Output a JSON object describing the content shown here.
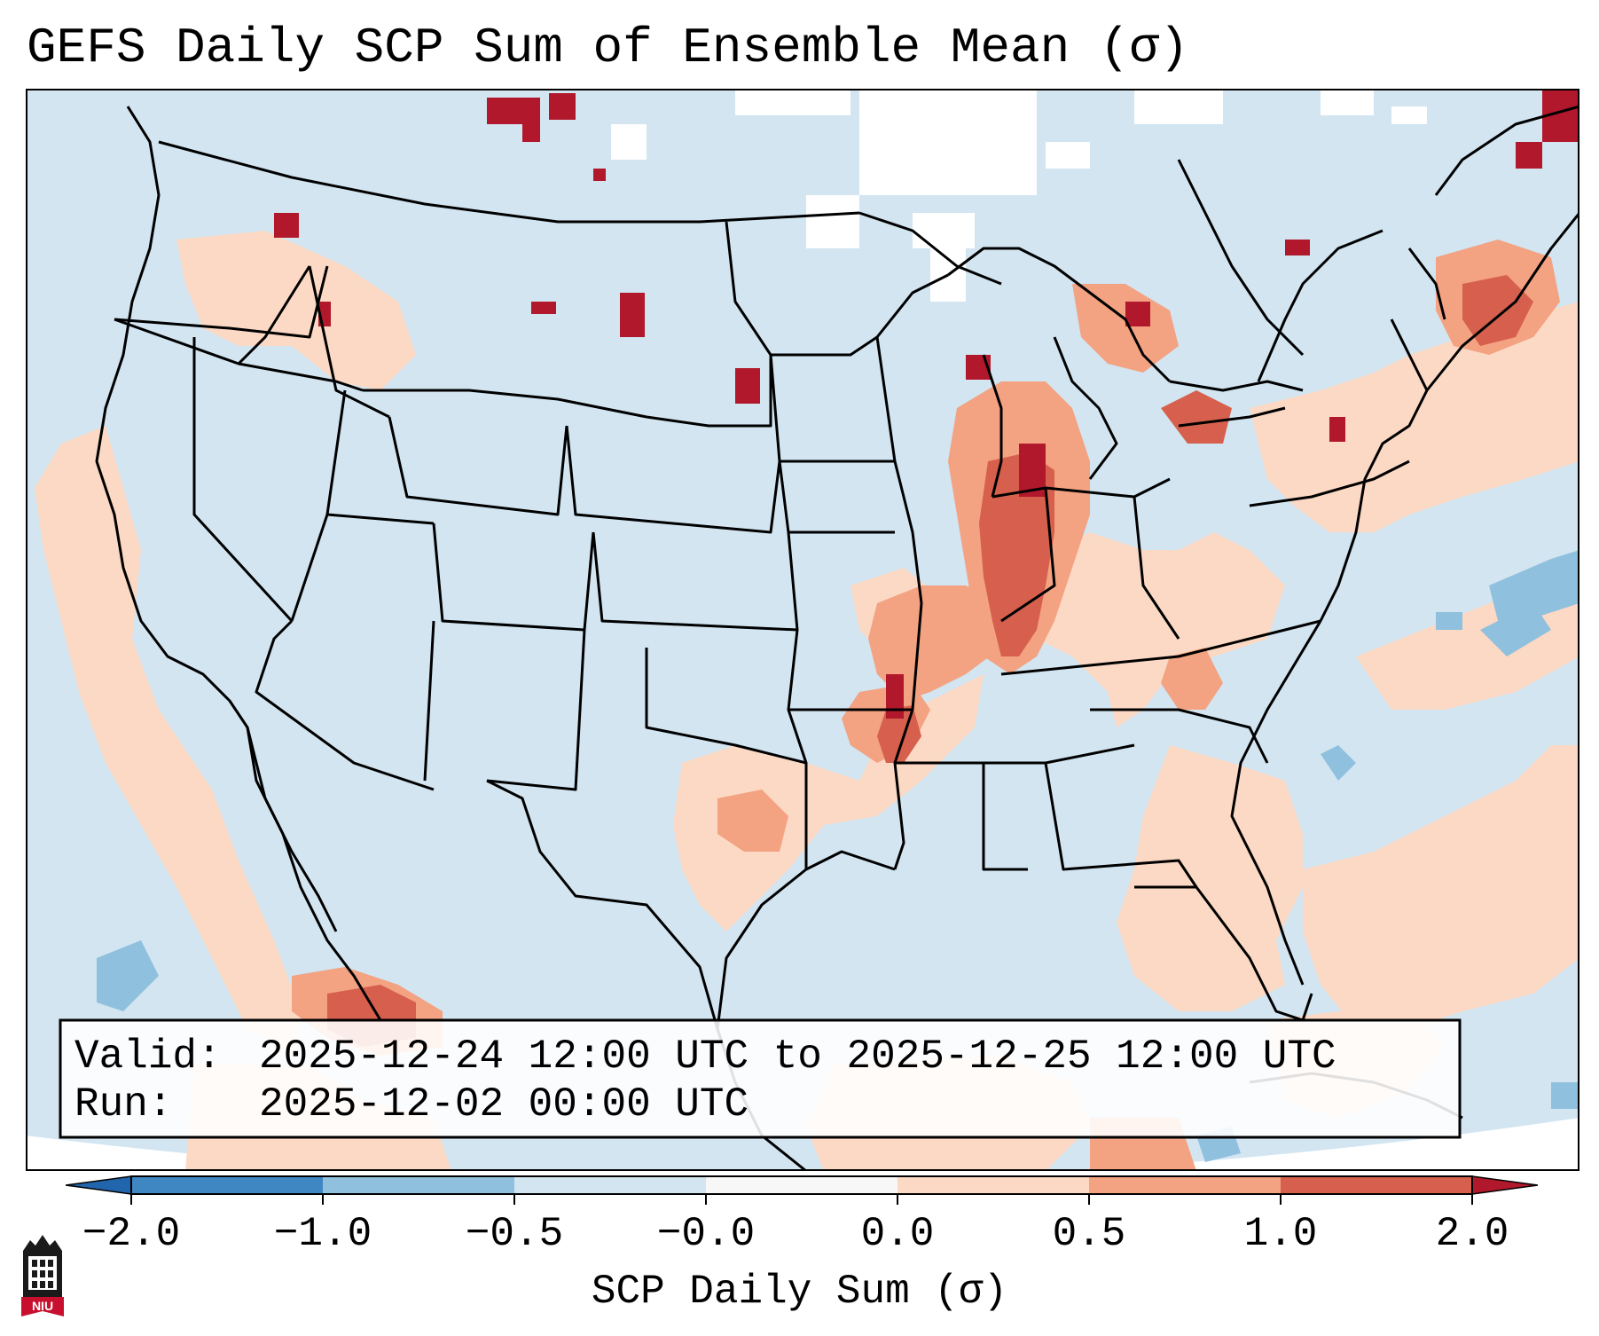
{
  "title": "GEFS Daily SCP Sum of Ensemble Mean (σ)",
  "info_box": {
    "valid_label": "Valid:",
    "valid_value": "2025-12-24 12:00 UTC to 2025-12-25 12:00 UTC",
    "run_label": "Run:",
    "run_value": "2025-12-02 00:00 UTC"
  },
  "colorbar": {
    "label": "SCP Daily Sum (σ)",
    "ticks": [
      "−2.0",
      "−1.0",
      "−0.5",
      "−0.0",
      "0.0",
      "0.5",
      "1.0",
      "2.0"
    ],
    "bins": [
      {
        "range": "-2.0 to -1.0",
        "color": "#3f87c2"
      },
      {
        "range": "-1.0 to -0.5",
        "color": "#8fc0de"
      },
      {
        "range": "-0.5 to -0.0",
        "color": "#d2e5f1"
      },
      {
        "range": "-0.0 to 0.0",
        "color": "#f7f7f7"
      },
      {
        "range": "0.0 to 0.5",
        "color": "#fcd9c4"
      },
      {
        "range": "0.5 to 1.0",
        "color": "#f3a282"
      },
      {
        "range": "1.0 to 2.0",
        "color": "#d6604d"
      }
    ],
    "under_color": "#2166ac",
    "over_color": "#b2182b"
  },
  "logo": {
    "text": "NIU",
    "color": "#c8102e"
  }
}
